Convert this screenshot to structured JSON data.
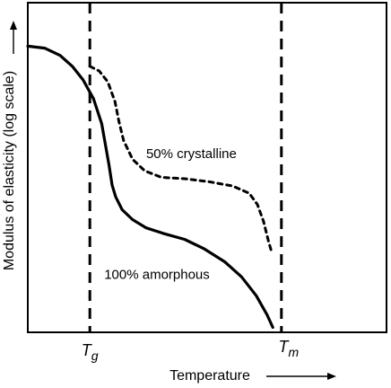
{
  "chart_data": {
    "type": "line",
    "xlabel": "Temperature",
    "ylabel": "Modulus of elasticity (log scale)",
    "xlim": [
      0,
      100
    ],
    "ylim": [
      0,
      100
    ],
    "grid": false,
    "reference_lines": [
      {
        "name": "glass-transition-line",
        "x": 17.3
      },
      {
        "name": "melting-line",
        "x": 70.7
      }
    ],
    "tick_labels": {
      "tg": {
        "main": "T",
        "sub": "g",
        "x": 17.3
      },
      "tm": {
        "main": "T",
        "sub": "m",
        "x": 70.7
      }
    },
    "series": [
      {
        "name": "100% amorphous",
        "style": "solid",
        "x": [
          0,
          4.7,
          9.0,
          12.4,
          15.4,
          18.3,
          20.6,
          22.6,
          23.5,
          24.5,
          26.3,
          29.2,
          33.0,
          37.8,
          43.7,
          49.2,
          54.9,
          59.6,
          63.7,
          66.7,
          68.3
        ],
        "y": [
          86.8,
          86.2,
          84.0,
          80.7,
          76.6,
          70.9,
          63.3,
          51.0,
          44.7,
          41.1,
          37.2,
          34.2,
          31.7,
          30.0,
          28.2,
          25.3,
          21.4,
          16.8,
          11.1,
          5.3,
          1.5
        ]
      },
      {
        "name": "50% crystalline",
        "style": "dashed",
        "x": [
          17.3,
          19.9,
          22.3,
          24.3,
          25.4,
          26.7,
          29.2,
          32.6,
          37.3,
          43.7,
          50.5,
          57.1,
          61.7,
          64.0,
          65.7,
          67.1,
          68.1
        ],
        "y": [
          80.7,
          79.3,
          76.0,
          70.0,
          64.0,
          58.2,
          52.5,
          49.0,
          47.0,
          46.6,
          45.7,
          44.4,
          42.2,
          38.8,
          33.7,
          27.6,
          23.9
        ]
      }
    ],
    "annotations": [
      {
        "text": "50% crystalline",
        "series": "50% crystalline",
        "x": 45.6,
        "y": 52.8
      },
      {
        "text": "100% amorphous",
        "series": "100% amorphous",
        "x": 36.0,
        "y": 16.2
      }
    ]
  }
}
